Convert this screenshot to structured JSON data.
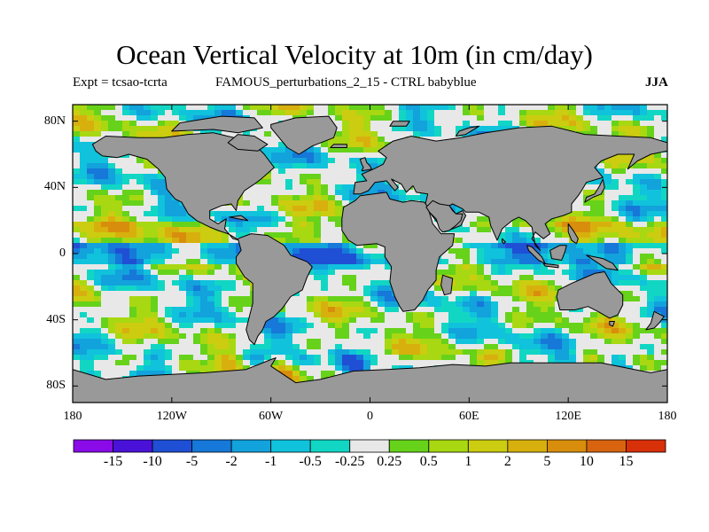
{
  "title": "Ocean Vertical Velocity at 10m (in cm/day)",
  "subtitle_left": "Expt = tcsao-tcrta",
  "subtitle_mid": "FAMOUS_perturbations_2_15 - CTRL babyblue",
  "season": "JJA",
  "lat_ticks": [
    {
      "label": "80N",
      "value": 80
    },
    {
      "label": "40N",
      "value": 40
    },
    {
      "label": "0",
      "value": 0
    },
    {
      "label": "40S",
      "value": -40
    },
    {
      "label": "80S",
      "value": -80
    }
  ],
  "lon_ticks": [
    {
      "label": "180",
      "value": -180
    },
    {
      "label": "120W",
      "value": -120
    },
    {
      "label": "60W",
      "value": -60
    },
    {
      "label": "0",
      "value": 0
    },
    {
      "label": "60E",
      "value": 60
    },
    {
      "label": "120E",
      "value": 120
    },
    {
      "label": "180",
      "value": 180
    }
  ],
  "colorbar": {
    "colors": [
      "#8a0ae8",
      "#4a12d8",
      "#1f4fd4",
      "#1678d8",
      "#12a2dc",
      "#10c2dc",
      "#12d6c4",
      "#e8e8e8",
      "#66d21a",
      "#a8d812",
      "#cccc10",
      "#d8b00e",
      "#d88e0c",
      "#d86410",
      "#d83008"
    ],
    "labels": [
      "-15",
      "-10",
      "-5",
      "-2",
      "-1",
      "-0.5",
      "-0.25",
      "0.25",
      "0.5",
      "1",
      "2",
      "5",
      "10",
      "15"
    ]
  },
  "colors": {
    "land": "#999999",
    "coast": "#000000"
  }
}
